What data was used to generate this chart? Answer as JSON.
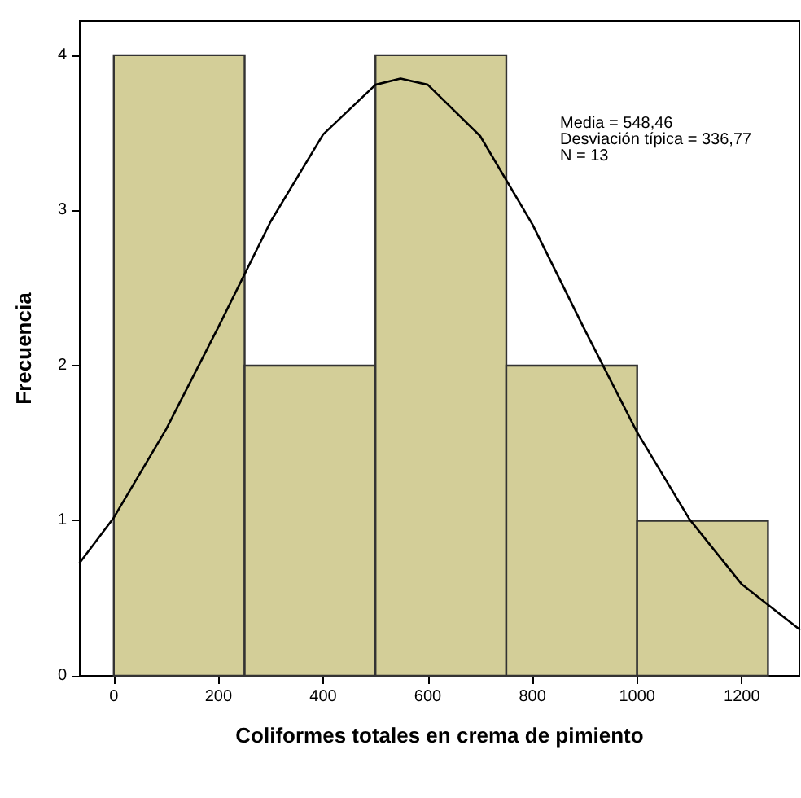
{
  "chart_data": {
    "type": "histogram",
    "xlabel": "Coliformes totales en crema de pimiento",
    "ylabel": "Frecuencia",
    "bins": [
      0,
      250,
      500,
      750,
      1000,
      1250
    ],
    "values": [
      4,
      2,
      4,
      2,
      1
    ],
    "color": "#d3ce98",
    "series": [
      {
        "type": "line",
        "color": "#000000",
        "x": [
          -65,
          0,
          100,
          200,
          300,
          400,
          500,
          548,
          600,
          700,
          800,
          900,
          1000,
          1100,
          1200,
          1310
        ],
        "values": [
          0.73,
          1.02,
          1.59,
          2.25,
          2.93,
          3.49,
          3.81,
          3.85,
          3.81,
          3.48,
          2.91,
          2.23,
          1.57,
          1.01,
          0.59,
          0.3
        ]
      }
    ],
    "annotations": [
      "Media = 548,46",
      "Desviación típica = 336,77",
      "N = 13"
    ],
    "xlim": [
      -65,
      1310
    ],
    "ylim": [
      0,
      4.22
    ],
    "xticks": [
      0,
      200,
      400,
      600,
      800,
      1000,
      1200
    ],
    "yticks": [
      0,
      1,
      2,
      3,
      4
    ],
    "grid": false,
    "marker": "none",
    "line_style": "solid"
  }
}
